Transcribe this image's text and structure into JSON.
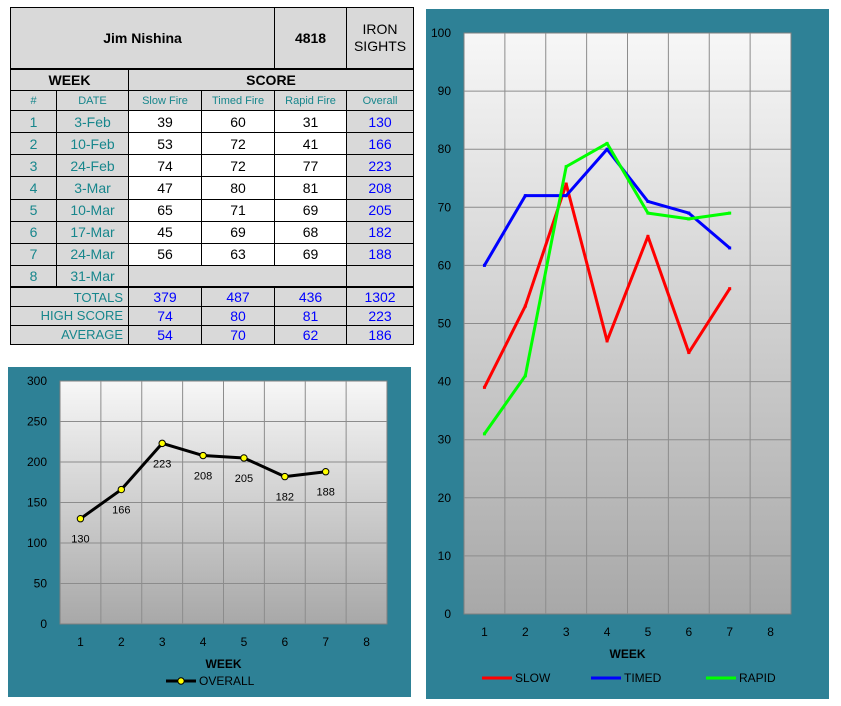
{
  "table": {
    "shooter_name": "Jim Nishina",
    "shooter_id": "4818",
    "sights_line1": "IRON",
    "sights_line2": "SIGHTS",
    "week_header": "WEEK",
    "score_header": "SCORE",
    "columns": [
      "#",
      "DATE",
      "Slow Fire",
      "Timed Fire",
      "Rapid Fire",
      "Overall"
    ],
    "rows": [
      {
        "num": "1",
        "date": "3-Feb",
        "slow": "39",
        "timed": "60",
        "rapid": "31",
        "overall": "130"
      },
      {
        "num": "2",
        "date": "10-Feb",
        "slow": "53",
        "timed": "72",
        "rapid": "41",
        "overall": "166"
      },
      {
        "num": "3",
        "date": "24-Feb",
        "slow": "74",
        "timed": "72",
        "rapid": "77",
        "overall": "223"
      },
      {
        "num": "4",
        "date": "3-Mar",
        "slow": "47",
        "timed": "80",
        "rapid": "81",
        "overall": "208"
      },
      {
        "num": "5",
        "date": "10-Mar",
        "slow": "65",
        "timed": "71",
        "rapid": "69",
        "overall": "205"
      },
      {
        "num": "6",
        "date": "17-Mar",
        "slow": "45",
        "timed": "69",
        "rapid": "68",
        "overall": "182"
      },
      {
        "num": "7",
        "date": "24-Mar",
        "slow": "56",
        "timed": "63",
        "rapid": "69",
        "overall": "188"
      },
      {
        "num": "8",
        "date": "31-Mar",
        "slow": "",
        "timed": "",
        "rapid": "",
        "overall": ""
      }
    ],
    "totals": {
      "label": "TOTALS",
      "slow": "379",
      "timed": "487",
      "rapid": "436",
      "overall": "1302"
    },
    "high": {
      "label": "HIGH SCORE",
      "slow": "74",
      "timed": "80",
      "rapid": "81",
      "overall": "223"
    },
    "average": {
      "label": "AVERAGE",
      "slow": "54",
      "timed": "70",
      "rapid": "62",
      "overall": "186"
    }
  },
  "chart_data": [
    {
      "type": "line",
      "x": [
        1,
        2,
        3,
        4,
        5,
        6,
        7,
        8
      ],
      "xticks": [
        "1",
        "2",
        "3",
        "4",
        "5",
        "6",
        "7",
        "8"
      ],
      "yticks": [
        "0",
        "50",
        "100",
        "150",
        "200",
        "250",
        "300"
      ],
      "ylim": [
        0,
        300
      ],
      "xlabel": "WEEK",
      "ylabel": "",
      "title": "",
      "legend_position": "bottom",
      "grid": true,
      "series": [
        {
          "name": "OVERALL",
          "color": "#000000",
          "marker_color": "#ffff00",
          "x": [
            1,
            2,
            3,
            4,
            5,
            6,
            7
          ],
          "values": [
            130,
            166,
            223,
            208,
            205,
            182,
            188
          ],
          "labels": [
            "130",
            "166",
            "223",
            "208",
            "205",
            "182",
            "188"
          ]
        }
      ]
    },
    {
      "type": "line",
      "x": [
        1,
        2,
        3,
        4,
        5,
        6,
        7,
        8
      ],
      "xticks": [
        "1",
        "2",
        "3",
        "4",
        "5",
        "6",
        "7",
        "8"
      ],
      "yticks": [
        "0",
        "10",
        "20",
        "30",
        "40",
        "50",
        "60",
        "70",
        "80",
        "90",
        "100"
      ],
      "ylim": [
        0,
        100
      ],
      "xlabel": "WEEK",
      "ylabel": "",
      "title": "",
      "legend_position": "bottom",
      "grid": true,
      "series": [
        {
          "name": "SLOW",
          "color": "#ff0000",
          "x": [
            1,
            2,
            3,
            4,
            5,
            6,
            7
          ],
          "values": [
            39,
            53,
            74,
            47,
            65,
            45,
            56
          ]
        },
        {
          "name": "TIMED",
          "color": "#0000ff",
          "x": [
            1,
            2,
            3,
            4,
            5,
            6,
            7
          ],
          "values": [
            60,
            72,
            72,
            80,
            71,
            69,
            63
          ]
        },
        {
          "name": "RAPID",
          "color": "#00ff00",
          "x": [
            1,
            2,
            3,
            4,
            5,
            6,
            7
          ],
          "values": [
            31,
            41,
            77,
            81,
            69,
            68,
            69
          ]
        }
      ]
    }
  ]
}
